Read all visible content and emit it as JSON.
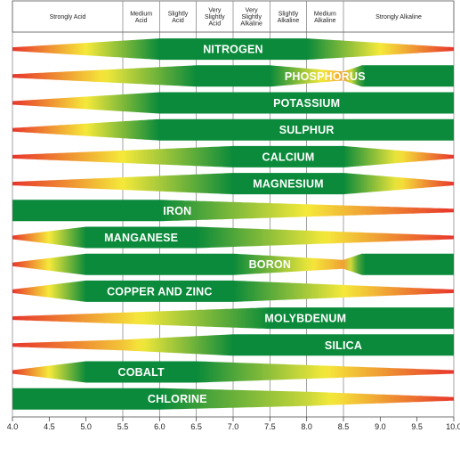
{
  "chart_data": {
    "type": "band",
    "x_axis": {
      "range": [
        4.0,
        10.0
      ],
      "ticks": [
        "4.0",
        "4.5",
        "5.0",
        "5.5",
        "6.0",
        "6.5",
        "7.0",
        "7.5",
        "8.0",
        "8.5",
        "9.0",
        "9.5",
        "10.0"
      ]
    },
    "zones": [
      {
        "label": "Strongly Acid",
        "from": 4.0,
        "to": 5.5
      },
      {
        "label": "Medium Acid",
        "from": 5.5,
        "to": 6.0
      },
      {
        "label": "Slightly Acid",
        "from": 6.0,
        "to": 6.5
      },
      {
        "label": "Very Slightly Acid",
        "from": 6.5,
        "to": 7.0
      },
      {
        "label": "Very Slightly Alkaline",
        "from": 7.0,
        "to": 7.5
      },
      {
        "label": "Slightly Alkaline",
        "from": 7.5,
        "to": 8.0
      },
      {
        "label": "Medium Alkaline",
        "from": 8.0,
        "to": 8.5
      },
      {
        "label": "Strongly Alkaline",
        "from": 8.5,
        "to": 10.0
      }
    ],
    "colors": {
      "high": "#0a8a3a",
      "mid": "#f5e93a",
      "low": "#e8352b"
    },
    "series": [
      {
        "name": "NITROGEN",
        "availability": [
          [
            4.0,
            0
          ],
          [
            6.0,
            1
          ],
          [
            8.0,
            1
          ],
          [
            10.0,
            0
          ]
        ]
      },
      {
        "name": "PHOSPHORUS",
        "availability": [
          [
            4.0,
            0
          ],
          [
            6.5,
            1
          ],
          [
            7.5,
            1
          ],
          [
            8.5,
            0.3
          ],
          [
            8.75,
            1
          ],
          [
            10.0,
            1
          ]
        ]
      },
      {
        "name": "POTASSIUM",
        "availability": [
          [
            4.0,
            0
          ],
          [
            6.0,
            1
          ],
          [
            10.0,
            1
          ]
        ]
      },
      {
        "name": "SULPHUR",
        "availability": [
          [
            4.0,
            0
          ],
          [
            6.0,
            1
          ],
          [
            7.0,
            1
          ],
          [
            10.0,
            1
          ]
        ]
      },
      {
        "name": "CALCIUM",
        "availability": [
          [
            4.0,
            0
          ],
          [
            7.0,
            1
          ],
          [
            8.5,
            1
          ],
          [
            10.0,
            0
          ]
        ]
      },
      {
        "name": "MAGNESIUM",
        "availability": [
          [
            4.0,
            0
          ],
          [
            7.0,
            1
          ],
          [
            8.5,
            1
          ],
          [
            10.0,
            0
          ]
        ]
      },
      {
        "name": "IRON",
        "availability": [
          [
            4.0,
            1
          ],
          [
            6.0,
            1
          ],
          [
            10.0,
            0
          ]
        ]
      },
      {
        "name": "MANGANESE",
        "availability": [
          [
            4.0,
            0
          ],
          [
            5.0,
            1
          ],
          [
            6.5,
            1
          ],
          [
            10.0,
            0
          ]
        ]
      },
      {
        "name": "BORON",
        "availability": [
          [
            4.0,
            0
          ],
          [
            5.0,
            1
          ],
          [
            7.0,
            1
          ],
          [
            8.5,
            0.3
          ],
          [
            8.75,
            1
          ],
          [
            10.0,
            1
          ]
        ]
      },
      {
        "name": "COPPER AND ZINC",
        "availability": [
          [
            4.0,
            0
          ],
          [
            5.0,
            1
          ],
          [
            7.0,
            1
          ],
          [
            10.0,
            0
          ]
        ]
      },
      {
        "name": "MOLYBDENUM",
        "availability": [
          [
            4.0,
            0
          ],
          [
            7.5,
            1
          ],
          [
            10.0,
            1
          ]
        ]
      },
      {
        "name": "SILICA",
        "availability": [
          [
            4.0,
            0
          ],
          [
            5.5,
            0.4
          ],
          [
            7.0,
            1
          ],
          [
            10.0,
            1
          ]
        ]
      },
      {
        "name": "COBALT",
        "availability": [
          [
            4.0,
            0
          ],
          [
            5.0,
            1
          ],
          [
            6.5,
            1
          ],
          [
            10.0,
            0
          ]
        ]
      },
      {
        "name": "CHLORINE",
        "availability": [
          [
            4.0,
            1
          ],
          [
            6.0,
            1
          ],
          [
            8.0,
            0.6
          ],
          [
            10.0,
            0
          ]
        ]
      }
    ]
  }
}
